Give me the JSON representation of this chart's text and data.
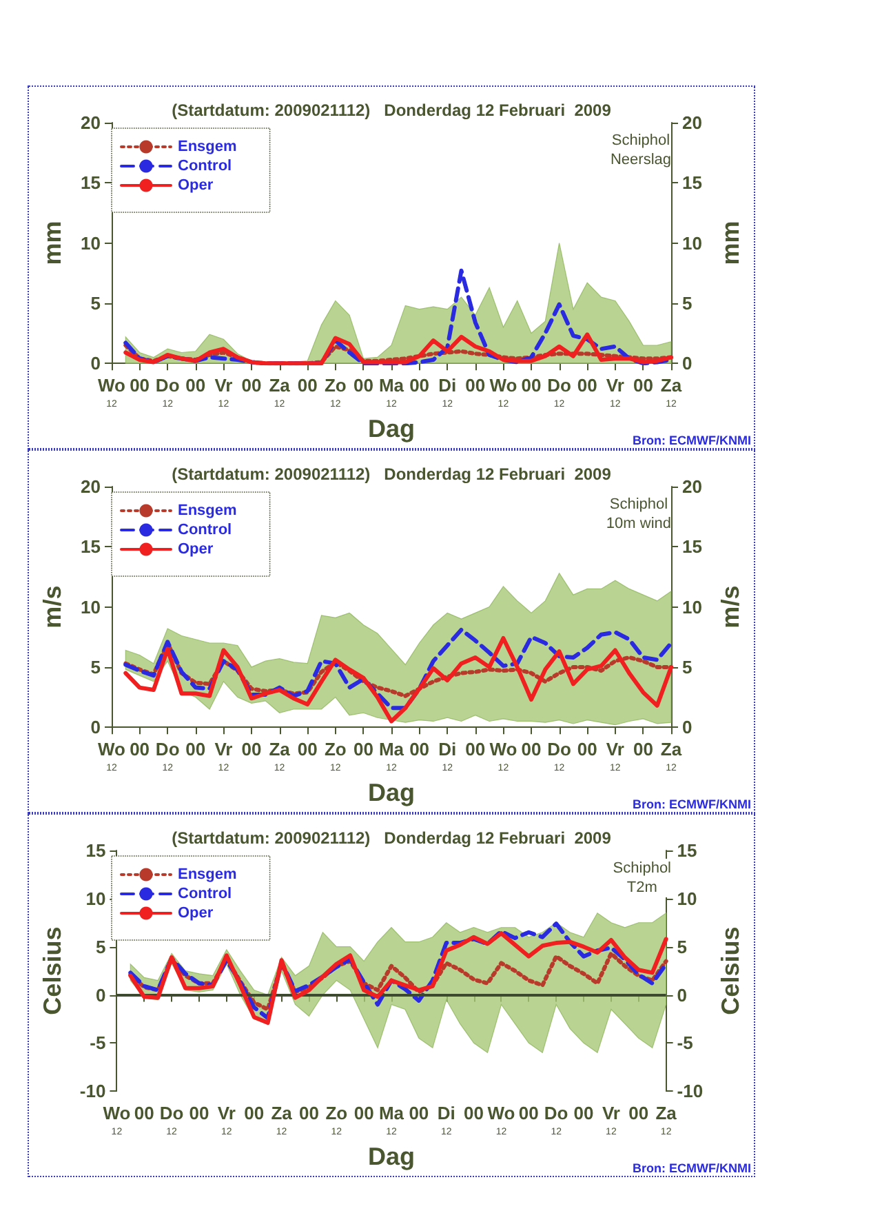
{
  "chart_data": [
    {
      "type": "line",
      "title": "(Startdatum: 2009021112)   Donderdag 12 Februari  2009",
      "xlabel": "Dag",
      "ylabel": "mm",
      "y2label": "mm",
      "annotations": [
        "Schiphol\nNeerslag",
        "Bron: ECMWF/KNMI"
      ],
      "categories": [
        "Wo\n12",
        null,
        "00",
        null,
        "Do\n12",
        null,
        "00",
        null,
        "Vr\n12",
        null,
        "00",
        null,
        "Za\n12",
        null,
        "00",
        null,
        "Zo\n12",
        null,
        "00",
        null,
        "Ma\n12",
        null,
        "00",
        null,
        "Di\n12",
        null,
        "00",
        null,
        "Wo\n12",
        null,
        "00",
        null,
        "Do\n12",
        null,
        "00",
        null,
        "Vr\n12",
        null,
        "00",
        null,
        "Za\n12"
      ],
      "ylim": [
        0,
        20
      ],
      "yticks": [
        0,
        5,
        10,
        15,
        20
      ],
      "y2lim": [
        0,
        20
      ],
      "y2ticks": [
        0,
        5,
        10,
        15,
        20
      ],
      "legend": "top left",
      "marker": "none",
      "series": [
        {
          "name": "Ensgem",
          "color": "#b83a2a",
          "line_style": "dotted",
          "values": [
            null,
            1.5,
            0.4,
            0.2,
            0.6,
            0.4,
            0.3,
            0.7,
            0.9,
            0.5,
            0.1,
            0,
            0,
            0,
            0,
            0.1,
            1.4,
            1.1,
            0.2,
            0.2,
            0.3,
            0.4,
            0.6,
            0.8,
            0.9,
            1.0,
            0.8,
            0.7,
            0.5,
            0.4,
            0.5,
            0.7,
            0.8,
            0.8,
            0.8,
            0.7,
            0.6,
            0.5,
            0.4,
            0.4,
            0.5
          ],
          "lower": [
            null,
            0,
            0,
            0,
            0,
            0,
            0,
            0,
            0,
            0,
            0,
            0,
            0,
            0,
            0,
            0,
            0,
            0,
            0,
            0,
            0,
            0,
            0,
            0,
            0,
            0,
            0,
            0,
            0,
            0,
            0,
            0,
            0,
            0,
            0,
            0,
            0,
            0,
            0,
            0,
            0
          ],
          "upper": [
            null,
            2.2,
            0.9,
            0.5,
            1.2,
            0.9,
            1.0,
            2.4,
            2.0,
            0.8,
            0.2,
            0.1,
            0.1,
            0.1,
            0.2,
            3.2,
            5.2,
            4.0,
            0.4,
            0.5,
            1.5,
            4.8,
            4.5,
            4.7,
            4.5,
            5.5,
            4.0,
            6.3,
            3.0,
            5.2,
            2.5,
            3.5,
            10.0,
            4.5,
            6.7,
            5.5,
            5.2,
            3.5,
            1.5,
            1.5,
            1.8
          ]
        },
        {
          "name": "Control",
          "color": "#2a2ae0",
          "line_style": "dashed",
          "values": [
            null,
            1.7,
            0.4,
            0.1,
            0.6,
            0.4,
            0.2,
            0.5,
            0.4,
            0.3,
            0.1,
            0,
            0,
            0,
            0,
            0,
            1.9,
            0.9,
            0,
            0,
            0,
            0,
            0.1,
            0.3,
            1.3,
            7.7,
            3.4,
            0.7,
            0.3,
            0.1,
            0.5,
            2.5,
            4.9,
            2.3,
            2.0,
            1.2,
            1.4,
            0.4,
            0,
            0.1,
            0.3
          ]
        },
        {
          "name": "Oper",
          "color": "#f02020",
          "line_style": "solid",
          "values": [
            null,
            0.9,
            0.3,
            0.1,
            0.7,
            0.4,
            0.2,
            0.9,
            1.2,
            0.5,
            0.1,
            0,
            0,
            0,
            0,
            0,
            2.1,
            1.6,
            0.1,
            0.1,
            0.1,
            0.1,
            0.6,
            1.9,
            1.0,
            2.2,
            1.4,
            1.0,
            0.3,
            0.2,
            0.2,
            0.6,
            1.4,
            0.6,
            2.4,
            0.3,
            0.4,
            0.4,
            0.1,
            0.2,
            0.5
          ]
        }
      ]
    },
    {
      "type": "line",
      "title": "(Startdatum: 2009021112)   Donderdag 12 Februari  2009",
      "xlabel": "Dag",
      "ylabel": "m/s",
      "y2label": "m/s",
      "annotations": [
        "Schiphol\n10m wind",
        "Bron: ECMWF/KNMI"
      ],
      "categories": [
        "Wo\n12",
        null,
        "00",
        null,
        "Do\n12",
        null,
        "00",
        null,
        "Vr\n12",
        null,
        "00",
        null,
        "Za\n12",
        null,
        "00",
        null,
        "Zo\n12",
        null,
        "00",
        null,
        "Ma\n12",
        null,
        "00",
        null,
        "Di\n12",
        null,
        "00",
        null,
        "Wo\n12",
        null,
        "00",
        null,
        "Do\n12",
        null,
        "00",
        null,
        "Vr\n12",
        null,
        "00",
        null,
        "Za\n12"
      ],
      "ylim": [
        0,
        20
      ],
      "yticks": [
        0,
        5,
        10,
        15,
        20
      ],
      "y2lim": [
        0,
        20
      ],
      "y2ticks": [
        0,
        5,
        10,
        15,
        20
      ],
      "legend": "top left",
      "marker": "none",
      "series": [
        {
          "name": "Ensgem",
          "color": "#b83a2a",
          "line_style": "dotted",
          "values": [
            null,
            5.3,
            4.8,
            4.4,
            7.0,
            4.5,
            3.7,
            3.6,
            5.5,
            4.7,
            3.2,
            3.0,
            3.1,
            2.8,
            2.9,
            4.6,
            5.4,
            4.7,
            3.8,
            3.3,
            3.0,
            2.6,
            3.2,
            3.8,
            4.2,
            4.5,
            4.6,
            4.8,
            4.7,
            4.8,
            4.5,
            3.8,
            4.5,
            5.0,
            5.0,
            4.7,
            5.5,
            5.8,
            5.5,
            5.0,
            5.0
          ],
          "lower": [
            null,
            4.8,
            4.3,
            3.8,
            5.5,
            3.0,
            2.5,
            1.5,
            3.8,
            2.5,
            2.0,
            2.2,
            1.2,
            1.5,
            1.5,
            1.5,
            2.5,
            1.0,
            1.2,
            0.8,
            0.6,
            0.4,
            0.6,
            0.5,
            0.8,
            0.5,
            1.0,
            0.5,
            0.7,
            0.5,
            0.5,
            0.4,
            0.6,
            0.3,
            0.6,
            0.4,
            0.2,
            0.5,
            0.7,
            0.3,
            0.4
          ],
          "upper": [
            null,
            6.4,
            6.0,
            5.3,
            8.2,
            7.6,
            7.3,
            7.0,
            7.0,
            6.8,
            5.0,
            5.5,
            5.7,
            5.4,
            5.3,
            9.3,
            9.1,
            9.5,
            8.5,
            7.8,
            6.5,
            5.2,
            7.0,
            8.5,
            9.5,
            9.0,
            9.5,
            10.0,
            11.7,
            10.5,
            9.5,
            10.5,
            12.8,
            11.0,
            11.5,
            11.5,
            12.2,
            11.5,
            11.0,
            10.5,
            11.3
          ]
        },
        {
          "name": "Control",
          "color": "#2a2ae0",
          "line_style": "dashed",
          "values": [
            null,
            5.2,
            4.7,
            4.3,
            7.1,
            4.6,
            3.3,
            3.2,
            5.5,
            4.8,
            2.7,
            2.7,
            3.3,
            2.6,
            3.0,
            5.5,
            5.3,
            3.3,
            4.0,
            2.8,
            1.6,
            1.6,
            3.2,
            5.5,
            6.8,
            8.1,
            7.2,
            6.2,
            5.1,
            5.3,
            7.5,
            7.0,
            5.9,
            5.8,
            6.6,
            7.7,
            7.9,
            7.3,
            5.8,
            5.6,
            7.0
          ]
        },
        {
          "name": "Oper",
          "color": "#f02020",
          "line_style": "solid",
          "values": [
            null,
            4.5,
            3.3,
            3.1,
            6.5,
            2.8,
            2.8,
            2.6,
            6.4,
            5.0,
            2.4,
            2.8,
            3.1,
            2.4,
            1.9,
            3.8,
            5.6,
            4.8,
            4.1,
            2.5,
            0.5,
            1.6,
            3.2,
            4.9,
            3.9,
            5.3,
            5.8,
            5.0,
            7.4,
            5.0,
            2.3,
            4.8,
            6.3,
            3.6,
            4.8,
            5.1,
            6.4,
            4.5,
            2.9,
            1.8,
            5.0
          ]
        }
      ]
    },
    {
      "type": "line",
      "title": "(Startdatum: 2009021112)   Donderdag 12 Februari  2009",
      "xlabel": "Dag",
      "ylabel": "Celsius",
      "y2label": "Celsius",
      "annotations": [
        "Schiphol\nT2m",
        "Bron: ECMWF/KNMI"
      ],
      "categories": [
        "Wo\n12",
        null,
        "00",
        null,
        "Do\n12",
        null,
        "00",
        null,
        "Vr\n12",
        null,
        "00",
        null,
        "Za\n12",
        null,
        "00",
        null,
        "Zo\n12",
        null,
        "00",
        null,
        "Ma\n12",
        null,
        "00",
        null,
        "Di\n12",
        null,
        "00",
        null,
        "Wo\n12",
        null,
        "00",
        null,
        "Do\n12",
        null,
        "00",
        null,
        "Vr\n12",
        null,
        "00",
        null,
        "Za\n12"
      ],
      "ylim": [
        -10,
        15
      ],
      "yticks": [
        -10,
        -5,
        0,
        5,
        10,
        15
      ],
      "y2lim": [
        -10,
        15
      ],
      "y2ticks": [
        -10,
        -5,
        0,
        5,
        10,
        15
      ],
      "legend": "top left",
      "marker": "none",
      "ref_lines": [
        {
          "axis": "y",
          "value": 0,
          "color": "#3e4a30"
        }
      ],
      "series": [
        {
          "name": "Ensgem",
          "color": "#b83a2a",
          "line_style": "dotted",
          "values": [
            null,
            2.1,
            0.8,
            0.5,
            3.7,
            2.0,
            1.2,
            1.2,
            3.7,
            1.4,
            -0.8,
            -1.5,
            3.2,
            0.3,
            0.8,
            1.8,
            3.0,
            3.5,
            1.2,
            0.5,
            3.0,
            1.8,
            0.3,
            1.0,
            3.3,
            2.6,
            1.6,
            1.2,
            3.3,
            2.5,
            1.5,
            1.0,
            4.0,
            3.0,
            2.2,
            1.2,
            4.3,
            3.0,
            2.0,
            1.5,
            3.5
          ],
          "lower": [
            null,
            1.5,
            -0.3,
            -0.5,
            3.3,
            0.5,
            0.3,
            0.5,
            3.2,
            0.0,
            -2.5,
            -3.0,
            2.5,
            -1.0,
            -2.2,
            0.0,
            1.5,
            0.5,
            -2.5,
            -5.5,
            -1.0,
            -1.5,
            -4.5,
            -5.5,
            -0.5,
            -3.0,
            -5.0,
            -6.0,
            -1.0,
            -3.0,
            -5.0,
            -6.0,
            -1.0,
            -3.5,
            -5.0,
            -6.0,
            -1.5,
            -3.0,
            -4.5,
            -5.5,
            -1.0
          ],
          "upper": [
            null,
            3.2,
            1.8,
            1.5,
            4.3,
            2.5,
            2.2,
            2.0,
            4.7,
            2.5,
            0.5,
            0.0,
            3.9,
            2.0,
            3.0,
            6.5,
            5.0,
            5.0,
            3.5,
            5.5,
            7.0,
            5.5,
            5.5,
            6.0,
            7.5,
            6.5,
            7.0,
            6.5,
            7.0,
            7.0,
            6.0,
            6.5,
            7.5,
            6.5,
            6.0,
            8.5,
            7.5,
            7.0,
            7.5,
            7.5,
            8.5
          ]
        },
        {
          "name": "Control",
          "color": "#2a2ae0",
          "line_style": "dashed",
          "values": [
            null,
            2.3,
            0.9,
            0.5,
            3.8,
            2.2,
            1.2,
            1.0,
            3.6,
            1.3,
            -1.3,
            -2.4,
            3.4,
            0.4,
            1.0,
            1.9,
            2.9,
            3.7,
            1.3,
            -1.0,
            1.5,
            0.6,
            -0.6,
            1.5,
            5.4,
            5.4,
            5.8,
            5.3,
            6.6,
            5.9,
            6.5,
            6.0,
            7.4,
            5.5,
            4.0,
            4.6,
            4.9,
            3.7,
            2.1,
            1.2,
            3.2
          ]
        },
        {
          "name": "Oper",
          "color": "#f02020",
          "line_style": "solid",
          "values": [
            null,
            2.0,
            -0.2,
            -0.3,
            3.9,
            0.7,
            0.7,
            0.9,
            4.1,
            1.0,
            -2.3,
            -2.9,
            3.6,
            -0.3,
            0.5,
            1.9,
            3.2,
            4.1,
            0.5,
            -0.2,
            1.5,
            1.0,
            0.5,
            0.9,
            4.6,
            5.2,
            6.0,
            5.3,
            6.4,
            5.2,
            4.0,
            5.1,
            5.4,
            5.5,
            5.0,
            4.4,
            5.7,
            3.9,
            2.6,
            2.3,
            5.8
          ]
        }
      ]
    }
  ]
}
